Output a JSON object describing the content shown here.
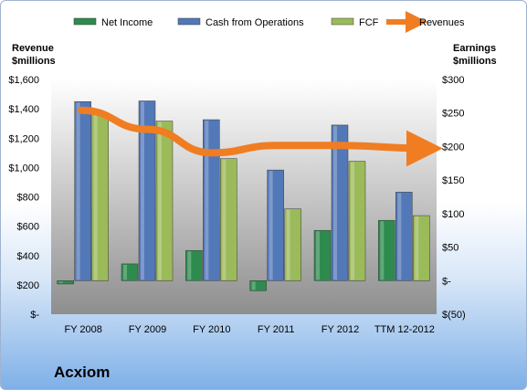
{
  "company": "Acxiom",
  "chart_data": {
    "type": "bar",
    "categories": [
      "FY 2008",
      "FY 2009",
      "FY 2010",
      "FY 2011",
      "FY 2012",
      "TTM 12-2012"
    ],
    "left_axis": {
      "label_line1": "Revenue",
      "label_line2": "$millions",
      "range": [
        0,
        1600
      ],
      "ticks": [
        "$-",
        "$200",
        "$400",
        "$600",
        "$800",
        "$1,000",
        "$1,200",
        "$1,400",
        "$1,600"
      ]
    },
    "right_axis": {
      "label_line1": "Earnings",
      "label_line2": "$millions",
      "range": [
        -50,
        300
      ],
      "ticks": [
        "$(50)",
        "$-",
        "$50",
        "$100",
        "$150",
        "$200",
        "$250",
        "$300"
      ]
    },
    "series": [
      {
        "name": "Net Income",
        "axis": "right",
        "kind": "bar",
        "color": "#2e8b4e",
        "values": [
          -5,
          25,
          45,
          -15,
          75,
          90
        ]
      },
      {
        "name": "Cash from Operations",
        "axis": "right",
        "kind": "bar",
        "color": "#5278b8",
        "values": [
          267,
          268,
          240,
          165,
          232,
          132
        ]
      },
      {
        "name": "FCF",
        "axis": "right",
        "kind": "bar",
        "color": "#9bba59",
        "values": [
          250,
          238,
          182,
          107,
          178,
          97
        ]
      },
      {
        "name": "Revenues",
        "axis": "left",
        "kind": "line",
        "color": "#f07d22",
        "values": [
          1390,
          1260,
          1100,
          1150,
          1150,
          1130
        ]
      }
    ],
    "legend_position": "top",
    "grid": false
  }
}
